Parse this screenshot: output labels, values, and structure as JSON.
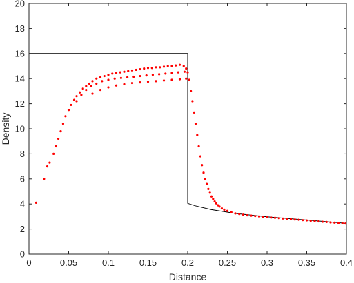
{
  "chart_data": {
    "type": "scatter",
    "title": "",
    "xlabel": "Distance",
    "ylabel": "Density",
    "xlim": [
      0,
      0.4
    ],
    "ylim": [
      0,
      20
    ],
    "xticks": [
      0,
      0.05,
      0.1,
      0.15,
      0.2,
      0.25,
      0.3,
      0.35,
      0.4
    ],
    "xtick_labels": [
      "0",
      "0.05",
      "0.1",
      "0.15",
      "0.2",
      "0.25",
      "0.3",
      "0.35",
      "0.4"
    ],
    "yticks": [
      0,
      2,
      4,
      6,
      8,
      10,
      12,
      14,
      16,
      18,
      20
    ],
    "ytick_labels": [
      "0",
      "2",
      "4",
      "6",
      "8",
      "10",
      "12",
      "14",
      "16",
      "18",
      "20"
    ],
    "grid": false,
    "box": true,
    "series": [
      {
        "style": "line",
        "color": "#000000",
        "x": [
          0,
          0.2,
          0.2,
          0.21,
          0.23,
          0.26,
          0.3,
          0.35,
          0.4
        ],
        "y": [
          16,
          16,
          4.05,
          3.85,
          3.55,
          3.25,
          2.98,
          2.72,
          2.45
        ]
      },
      {
        "style": "markers",
        "color": "#ff0000",
        "x": [
          0.009,
          0.019,
          0.023,
          0.026,
          0.031,
          0.034,
          0.037,
          0.04,
          0.043,
          0.046,
          0.05,
          0.053,
          0.057,
          0.06,
          0.064,
          0.068,
          0.072,
          0.076,
          0.08,
          0.085,
          0.09,
          0.095,
          0.1,
          0.105,
          0.11,
          0.115,
          0.12,
          0.125,
          0.13,
          0.135,
          0.14,
          0.145,
          0.15,
          0.155,
          0.16,
          0.165,
          0.17,
          0.175,
          0.18,
          0.185,
          0.19,
          0.195,
          0.198,
          0.06,
          0.066,
          0.072,
          0.078,
          0.085,
          0.092,
          0.1,
          0.108,
          0.116,
          0.124,
          0.132,
          0.14,
          0.148,
          0.156,
          0.164,
          0.172,
          0.18,
          0.188,
          0.196,
          0.08,
          0.09,
          0.1,
          0.11,
          0.12,
          0.13,
          0.14,
          0.15,
          0.16,
          0.17,
          0.18,
          0.19,
          0.198,
          0.2,
          0.202,
          0.204,
          0.206,
          0.208,
          0.21,
          0.212,
          0.214,
          0.216,
          0.218,
          0.22,
          0.222,
          0.224,
          0.226,
          0.228,
          0.23,
          0.232,
          0.234,
          0.236,
          0.238,
          0.24,
          0.243,
          0.246,
          0.25,
          0.255,
          0.26,
          0.265,
          0.27,
          0.275,
          0.28,
          0.285,
          0.29,
          0.295,
          0.3,
          0.305,
          0.31,
          0.315,
          0.32,
          0.325,
          0.33,
          0.335,
          0.34,
          0.345,
          0.35,
          0.355,
          0.36,
          0.365,
          0.37,
          0.375,
          0.38,
          0.385,
          0.39,
          0.395,
          0.399
        ],
        "y": [
          4.1,
          6.0,
          7.0,
          7.3,
          8.0,
          8.6,
          9.2,
          9.8,
          10.4,
          11.0,
          11.5,
          11.9,
          12.3,
          12.6,
          12.9,
          13.2,
          13.4,
          13.6,
          13.8,
          14.0,
          14.1,
          14.2,
          14.3,
          14.4,
          14.45,
          14.5,
          14.55,
          14.6,
          14.65,
          14.7,
          14.75,
          14.8,
          14.85,
          14.85,
          14.9,
          14.9,
          14.95,
          15.0,
          15.0,
          15.05,
          15.1,
          15.0,
          14.8,
          12.2,
          12.7,
          13.1,
          13.4,
          13.6,
          13.8,
          13.9,
          14.0,
          14.05,
          14.1,
          14.15,
          14.2,
          14.25,
          14.3,
          14.35,
          14.4,
          14.45,
          14.5,
          14.55,
          12.8,
          13.1,
          13.3,
          13.45,
          13.55,
          13.65,
          13.7,
          13.75,
          13.8,
          13.85,
          13.9,
          13.95,
          14.0,
          14.5,
          13.9,
          13.0,
          12.2,
          11.3,
          10.4,
          9.5,
          8.6,
          7.8,
          7.1,
          6.5,
          6.0,
          5.6,
          5.2,
          4.9,
          4.6,
          4.4,
          4.2,
          4.05,
          3.9,
          3.8,
          3.65,
          3.55,
          3.45,
          3.35,
          3.25,
          3.2,
          3.15,
          3.1,
          3.07,
          3.04,
          3.01,
          2.98,
          2.95,
          2.92,
          2.9,
          2.87,
          2.84,
          2.82,
          2.79,
          2.76,
          2.74,
          2.71,
          2.69,
          2.66,
          2.63,
          2.61,
          2.58,
          2.56,
          2.53,
          2.51,
          2.48,
          2.46,
          2.44
        ]
      }
    ]
  }
}
